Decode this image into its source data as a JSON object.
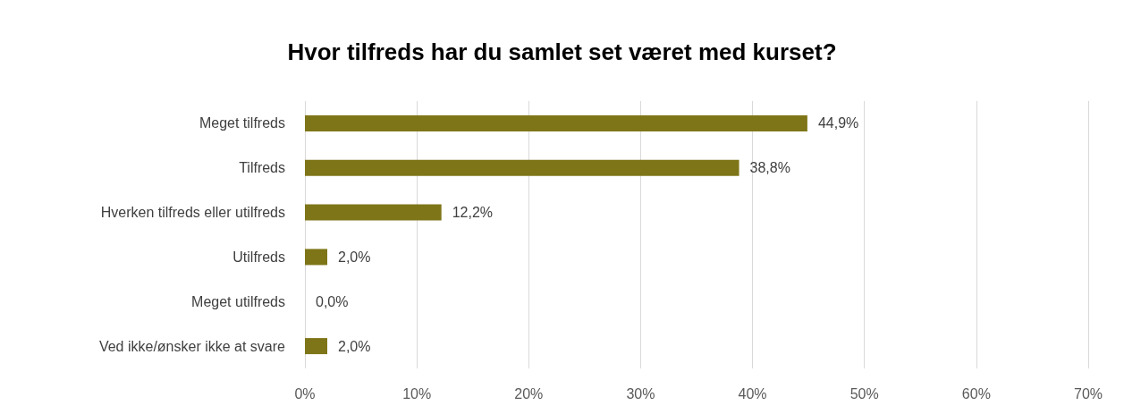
{
  "chart_data": {
    "type": "bar",
    "orientation": "horizontal",
    "title": "Hvor tilfreds har du samlet set været med kurset?",
    "categories": [
      "Meget tilfreds",
      "Tilfreds",
      "Hverken tilfreds eller utilfreds",
      "Utilfreds",
      "Meget utilfreds",
      "Ved ikke/ønsker ikke at svare"
    ],
    "values": [
      44.9,
      38.8,
      12.2,
      2.0,
      0.0,
      2.0
    ],
    "value_labels": [
      "44,9%",
      "38,8%",
      "12,2%",
      "2,0%",
      "0,0%",
      "2,0%"
    ],
    "color": "#7e7518",
    "xlim": [
      0,
      70
    ],
    "xticks": [
      {
        "value": 0,
        "label": "0%"
      },
      {
        "value": 10,
        "label": "10%"
      },
      {
        "value": 20,
        "label": "20%"
      },
      {
        "value": 30,
        "label": "30%"
      },
      {
        "value": 40,
        "label": "40%"
      },
      {
        "value": 50,
        "label": "50%"
      },
      {
        "value": 60,
        "label": "60%"
      },
      {
        "value": 70,
        "label": "70%"
      }
    ],
    "grid": "x"
  }
}
